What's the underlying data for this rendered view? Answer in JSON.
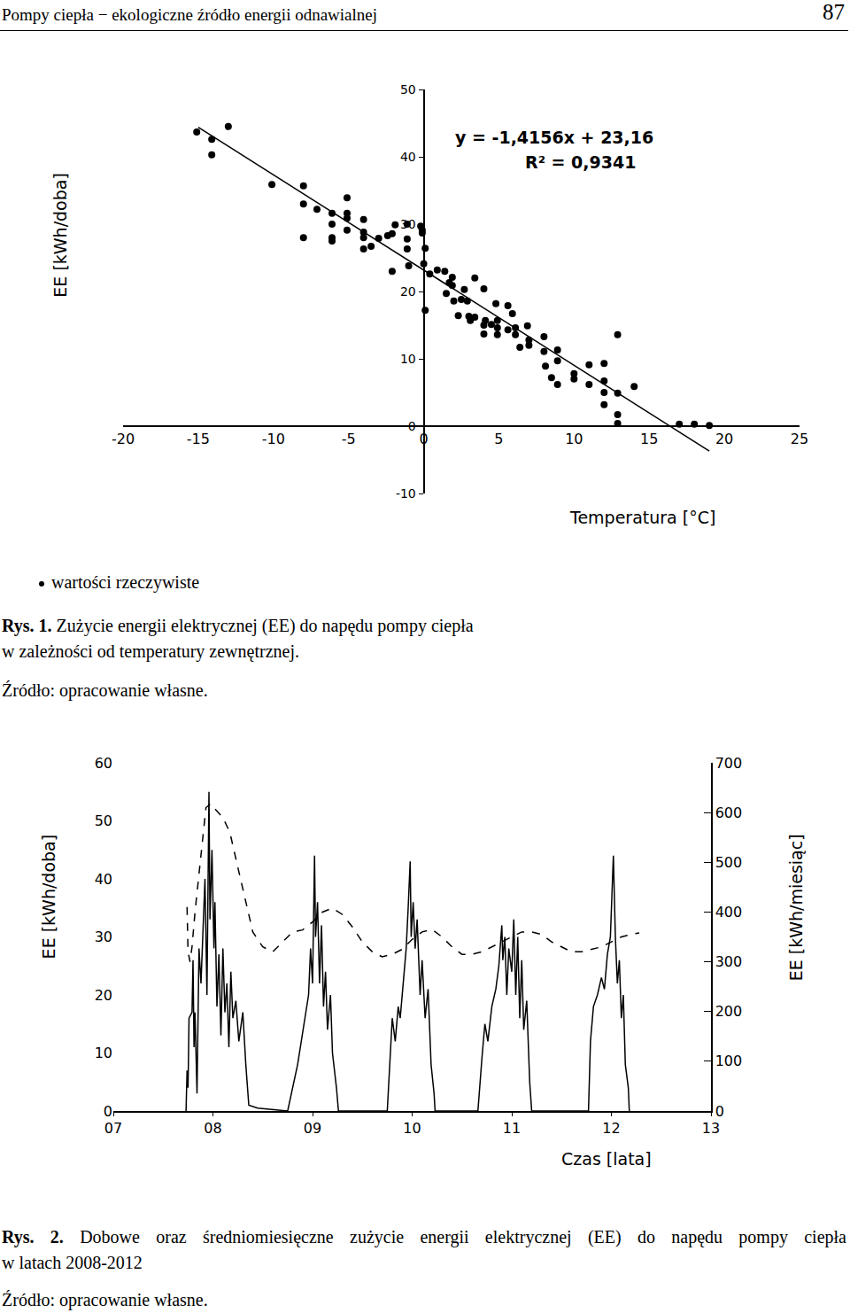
{
  "header": {
    "title": "Pompy ciepła − ekologiczne źródło energii odnawialnej",
    "page": "87"
  },
  "chart_data": [
    {
      "type": "scatter",
      "xlabel": "Temperatura [°C]",
      "ylabel": "EE [kWh/doba]",
      "annotations": [
        "y = -1,4156x + 23,16",
        "R² = 0,9341"
      ],
      "xlim": [
        -20,
        25
      ],
      "xticks": [
        -20,
        -15,
        -10,
        -5,
        0,
        5,
        10,
        15,
        20,
        25
      ],
      "ylim": [
        -10,
        50
      ],
      "yticks": [
        -10,
        0,
        10,
        20,
        30,
        40,
        50
      ],
      "grid": false,
      "series": [
        {
          "name": "wartości rzeczywiste",
          "type": "scatter",
          "marker": "circle",
          "color": "#000000",
          "x": [
            -15.1,
            -14.1,
            -14.1,
            -13.0,
            -10.1,
            -8.0,
            -8.0,
            -8.0,
            -7.1,
            -6.1,
            -6.1,
            -6.1,
            -6.1,
            -5.1,
            -5.1,
            -5.1,
            -5.1,
            -4.0,
            -4.0,
            -4.0,
            -4.0,
            -3.5,
            -3.0,
            -2.4,
            -2.1,
            -2.1,
            -1.9,
            -1.1,
            -1.1,
            -1.1,
            -1.0,
            -0.2,
            -0.1,
            -0.1,
            0.0,
            0.1,
            0.1,
            0.4,
            0.9,
            1.4,
            1.5,
            1.7,
            1.9,
            1.9,
            2.0,
            2.3,
            2.5,
            2.7,
            2.9,
            3.0,
            3.1,
            3.4,
            3.4,
            4.0,
            4.0,
            4.0,
            4.1,
            4.5,
            4.8,
            4.9,
            4.9,
            4.9,
            5.6,
            5.6,
            5.9,
            6.1,
            6.1,
            6.4,
            6.9,
            7.0,
            7.0,
            8.0,
            8.0,
            8.1,
            8.5,
            8.9,
            8.9,
            8.9,
            10.0,
            10.0,
            11.0,
            11.0,
            12.0,
            12.0,
            12.0,
            12.0,
            12.9,
            12.9,
            12.9,
            12.9,
            14.0,
            17.0,
            18.0,
            19.0
          ],
          "values": [
            43.7,
            42.6,
            40.3,
            44.5,
            35.9,
            35.7,
            33.0,
            28.0,
            32.2,
            31.6,
            30.0,
            28.0,
            27.5,
            33.9,
            31.6,
            30.9,
            29.1,
            30.7,
            28.8,
            28.0,
            26.3,
            26.7,
            27.9,
            28.3,
            28.6,
            23.0,
            29.9,
            30.0,
            27.8,
            26.3,
            23.8,
            29.7,
            29.1,
            28.7,
            24.1,
            26.4,
            17.2,
            22.6,
            23.2,
            23.0,
            19.7,
            21.3,
            22.1,
            20.9,
            18.6,
            16.4,
            18.8,
            20.3,
            18.6,
            16.3,
            15.7,
            22.0,
            16.2,
            20.4,
            15.0,
            13.7,
            15.7,
            15.1,
            18.2,
            14.6,
            13.6,
            15.7,
            17.9,
            14.3,
            16.7,
            14.6,
            13.6,
            11.7,
            14.9,
            12.8,
            12.0,
            13.3,
            11.1,
            8.9,
            7.2,
            11.3,
            9.7,
            6.2,
            7.8,
            7.0,
            9.1,
            6.2,
            9.3,
            6.7,
            5.0,
            3.2,
            13.6,
            4.9,
            1.7,
            0.4,
            5.9,
            0.3,
            0.3,
            0.1
          ]
        },
        {
          "type": "line",
          "line_style": "solid",
          "color": "#000000",
          "x": [
            -15,
            19
          ],
          "values": [
            44.4,
            -3.7
          ]
        }
      ]
    },
    {
      "type": "line",
      "xlabel": "Czas [lata]",
      "ylabel": "EE [kWh/doba]",
      "y2label": "EE [kWh/miesiąc]",
      "xlim": [
        2007,
        2013
      ],
      "xticks": [
        {
          "value": 2007,
          "label": "07"
        },
        {
          "value": 2008,
          "label": "08"
        },
        {
          "value": 2009,
          "label": "09"
        },
        {
          "value": 2010,
          "label": "10"
        },
        {
          "value": 2011,
          "label": "11"
        },
        {
          "value": 2012,
          "label": "12"
        },
        {
          "value": 2013,
          "label": "13"
        }
      ],
      "ylim": [
        0,
        60
      ],
      "yticks": [
        0,
        10,
        20,
        30,
        40,
        50,
        60
      ],
      "y2lim": [
        0,
        700
      ],
      "y2ticks": [
        0,
        100,
        200,
        300,
        400,
        500,
        600,
        700
      ],
      "grid": false,
      "series": [
        {
          "type": "line",
          "line_style": "solid",
          "color": "#000000",
          "x": [
            2007.73,
            2007.74,
            2007.75,
            2007.76,
            2007.79,
            2007.8,
            2007.81,
            2007.82,
            2007.84,
            2007.86,
            2007.88,
            2007.9,
            2007.92,
            2007.94,
            2007.96,
            2007.97,
            2007.99,
            2008.01,
            2008.02,
            2008.04,
            2008.06,
            2008.08,
            2008.1,
            2008.12,
            2008.14,
            2008.16,
            2008.18,
            2008.2,
            2008.23,
            2008.26,
            2008.3,
            2008.33,
            2008.36,
            2008.45,
            2008.75,
            2008.85,
            2008.92,
            2008.96,
            2008.98,
            2009.0,
            2009.02,
            2009.03,
            2009.05,
            2009.07,
            2009.09,
            2009.11,
            2009.13,
            2009.15,
            2009.18,
            2009.2,
            2009.24,
            2009.26,
            2009.75,
            2009.78,
            2009.8,
            2009.83,
            2009.86,
            2009.88,
            2009.91,
            2009.94,
            2009.96,
            2009.98,
            2009.99,
            2010.01,
            2010.03,
            2010.05,
            2010.08,
            2010.1,
            2010.13,
            2010.16,
            2010.19,
            2010.22,
            2010.23,
            2010.66,
            2010.7,
            2010.73,
            2010.76,
            2010.8,
            2010.84,
            2010.87,
            2010.9,
            2010.91,
            2010.93,
            2010.95,
            2010.97,
            2011.0,
            2011.02,
            2011.04,
            2011.06,
            2011.08,
            2011.1,
            2011.12,
            2011.15,
            2011.18,
            2011.2,
            2011.77,
            2011.79,
            2011.82,
            2011.86,
            2011.9,
            2011.93,
            2011.96,
            2011.99,
            2012.02,
            2012.04,
            2012.06,
            2012.08,
            2012.1,
            2012.12,
            2012.14,
            2012.17,
            2012.18
          ],
          "values": [
            0,
            7,
            4,
            16,
            17,
            26,
            11,
            17,
            3,
            28,
            22,
            30,
            40,
            20,
            55,
            33,
            45,
            28,
            36,
            18,
            27,
            13,
            28,
            17,
            22,
            11,
            24,
            16,
            19,
            12,
            17,
            8,
            1,
            0.5,
            0,
            8,
            16,
            20,
            28,
            22,
            44,
            30,
            36,
            22,
            32,
            18,
            24,
            14,
            20,
            10,
            4,
            0,
            0,
            10,
            16,
            12,
            18,
            16,
            22,
            28,
            35,
            43,
            30,
            36,
            28,
            33,
            20,
            26,
            16,
            21,
            8,
            3,
            0,
            0,
            9,
            15,
            12,
            18,
            21,
            25,
            32,
            26,
            30,
            20,
            28,
            24,
            33,
            20,
            30,
            16,
            26,
            14,
            19,
            5,
            0,
            0,
            12,
            18,
            20,
            23,
            21,
            27,
            30,
            44,
            30,
            22,
            26,
            16,
            20,
            8,
            4,
            0
          ]
        },
        {
          "type": "line",
          "line_style": "dash",
          "color": "#000000",
          "axis": "y2",
          "x": [
            2007.74,
            2007.75,
            2007.77,
            2007.79,
            2007.82,
            2007.86,
            2007.9,
            2007.93,
            2007.98,
            2008.03,
            2008.1,
            2008.17,
            2008.25,
            2008.33,
            2008.4,
            2008.5,
            2008.6,
            2008.7,
            2008.8,
            2008.9,
            2009.0,
            2009.1,
            2009.2,
            2009.3,
            2009.4,
            2009.5,
            2009.6,
            2009.7,
            2009.8,
            2009.9,
            2010.0,
            2010.1,
            2010.2,
            2010.3,
            2010.4,
            2010.5,
            2010.6,
            2010.7,
            2010.8,
            2010.9,
            2011.0,
            2011.1,
            2011.2,
            2011.3,
            2011.4,
            2011.5,
            2011.6,
            2011.7,
            2011.8,
            2011.9,
            2012.0,
            2012.1,
            2012.2,
            2012.28
          ],
          "values": [
            410,
            320,
            300,
            330,
            400,
            480,
            560,
            610,
            618,
            605,
            590,
            560,
            490,
            420,
            360,
            330,
            320,
            340,
            360,
            364,
            380,
            400,
            408,
            395,
            370,
            340,
            320,
            310,
            315,
            325,
            345,
            360,
            365,
            350,
            330,
            315,
            315,
            320,
            330,
            340,
            350,
            360,
            360,
            355,
            340,
            330,
            320,
            320,
            325,
            330,
            340,
            350,
            355,
            358
          ]
        }
      ]
    }
  ],
  "captions": [
    {
      "label": "Rys. 1.",
      "lines": [
        "Zużycie energii elektrycznej (EE) do napędu pompy ciepła",
        "w zależności od temperatury zewnętrznej."
      ],
      "source": "Źródło: opracowanie własne."
    },
    {
      "label": "Rys. 2.",
      "lines": [
        "Dobowe oraz średniomiesięczne zużycie energii elektrycznej (EE) do napędu pompy ciepła",
        "w latach 2008-2012"
      ],
      "source": "Źródło: opracowanie własne."
    }
  ]
}
